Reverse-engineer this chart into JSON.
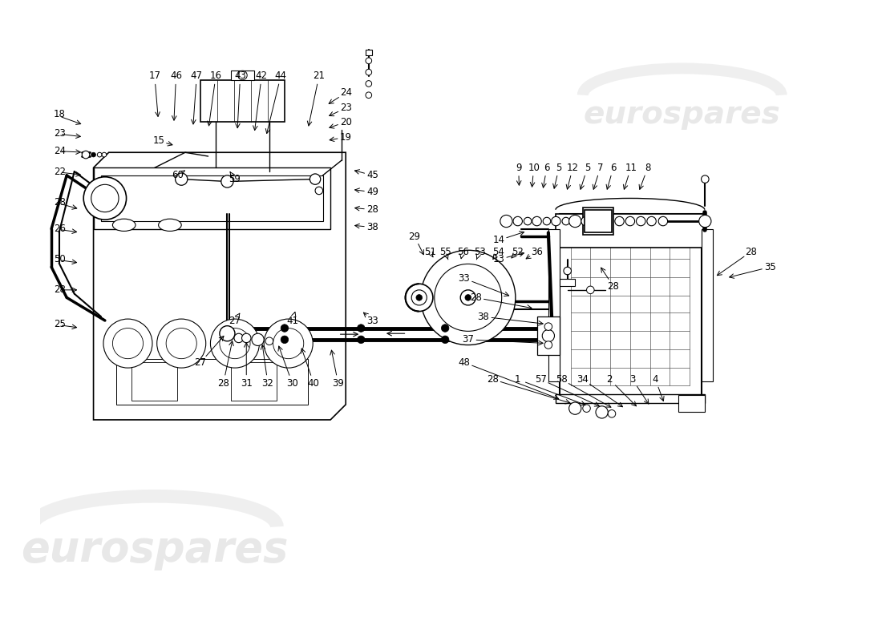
{
  "bg_color": "#ffffff",
  "lc": "#000000",
  "fs": 8.5,
  "watermark_color": "#cccccc",
  "watermark_text": "eurospares"
}
